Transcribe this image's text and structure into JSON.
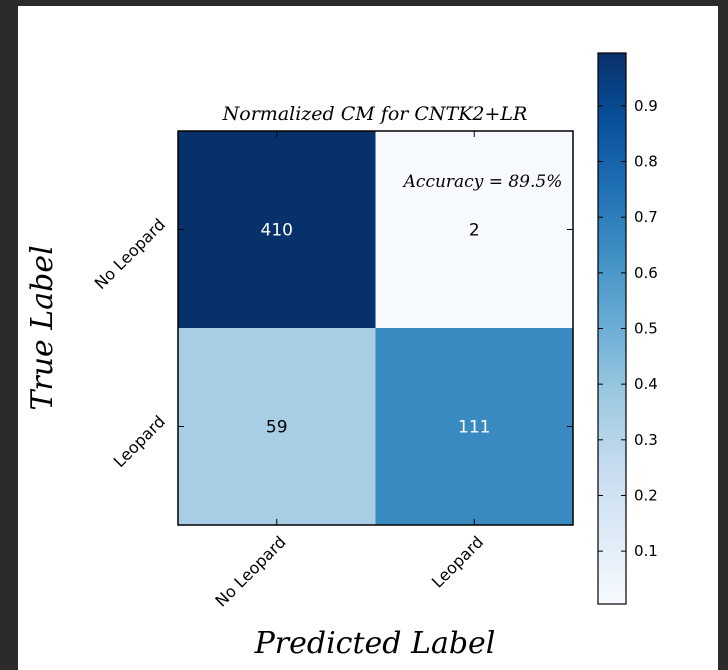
{
  "chart_data": {
    "type": "heatmap",
    "title": "Normalized CM for CNTK2+LR",
    "xlabel": "Predicted Label",
    "ylabel": "True Label",
    "x_categories": [
      "No Leopard",
      "Leopard"
    ],
    "y_categories": [
      "No Leopard",
      "Leopard"
    ],
    "counts": [
      [
        410,
        2
      ],
      [
        59,
        111
      ]
    ],
    "normalized": [
      [
        0.995,
        0.005
      ],
      [
        0.347,
        0.653
      ]
    ],
    "annotation": "Accuracy = 89.5%",
    "colormap": "Blues",
    "colorbar": {
      "range": [
        0.005,
        0.995
      ],
      "ticks": [
        0.1,
        0.2,
        0.3,
        0.4,
        0.5,
        0.6,
        0.7,
        0.8,
        0.9
      ],
      "tick_labels": [
        "0.1",
        "0.2",
        "0.3",
        "0.4",
        "0.5",
        "0.6",
        "0.7",
        "0.8",
        "0.9"
      ]
    }
  }
}
